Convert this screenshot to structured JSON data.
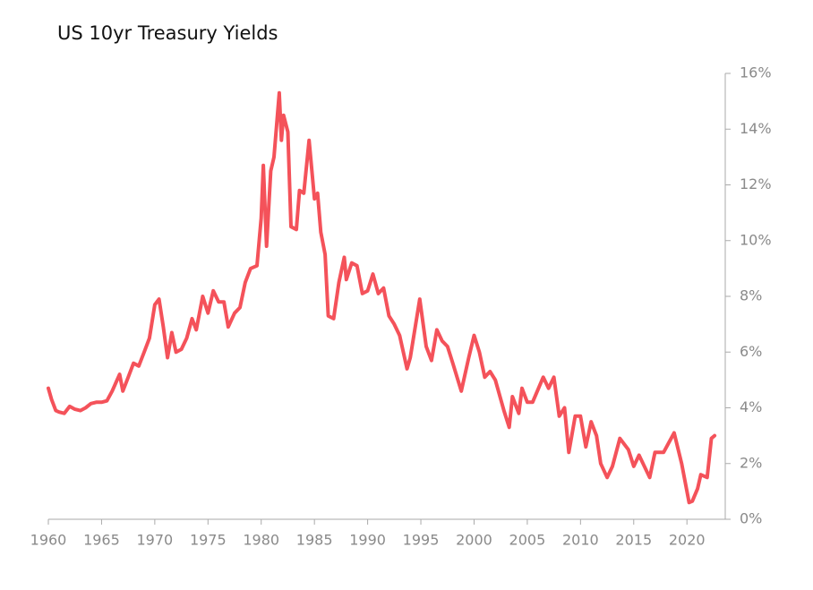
{
  "chart_data": {
    "type": "line",
    "title": "US 10yr Treasury Yields",
    "x": [
      1960.0,
      1960.3,
      1960.7,
      1961.0,
      1961.5,
      1962.0,
      1962.5,
      1963.0,
      1963.5,
      1964.0,
      1964.5,
      1965.0,
      1965.5,
      1966.0,
      1966.7,
      1967.0,
      1967.5,
      1968.0,
      1968.5,
      1969.0,
      1969.5,
      1970.0,
      1970.4,
      1970.8,
      1971.2,
      1971.6,
      1972.0,
      1972.5,
      1973.0,
      1973.5,
      1973.9,
      1974.5,
      1975.0,
      1975.5,
      1976.0,
      1976.5,
      1976.9,
      1977.5,
      1978.0,
      1978.5,
      1979.0,
      1979.6,
      1980.0,
      1980.2,
      1980.5,
      1980.9,
      1981.2,
      1981.7,
      1981.9,
      1982.1,
      1982.5,
      1982.8,
      1983.3,
      1983.6,
      1984.0,
      1984.5,
      1985.0,
      1985.3,
      1985.6,
      1986.0,
      1986.3,
      1986.8,
      1987.3,
      1987.8,
      1988.0,
      1988.5,
      1989.0,
      1989.5,
      1990.0,
      1990.5,
      1991.0,
      1991.5,
      1992.0,
      1992.5,
      1993.0,
      1993.7,
      1994.0,
      1994.9,
      1995.5,
      1996.0,
      1996.5,
      1997.0,
      1997.5,
      1998.0,
      1998.8,
      1999.5,
      2000.0,
      2000.5,
      2001.0,
      2001.5,
      2002.0,
      2002.8,
      2003.3,
      2003.6,
      2004.2,
      2004.5,
      2005.0,
      2005.5,
      2006.5,
      2007.0,
      2007.5,
      2008.0,
      2008.5,
      2008.9,
      2009.5,
      2010.0,
      2010.5,
      2011.0,
      2011.5,
      2011.9,
      2012.5,
      2013.0,
      2013.7,
      2014.5,
      2015.0,
      2015.5,
      2016.5,
      2017.0,
      2017.8,
      2018.8,
      2019.5,
      2020.2,
      2020.5,
      2021.0,
      2021.3,
      2021.9,
      2022.3,
      2022.6
    ],
    "values": [
      4.7,
      4.3,
      3.9,
      3.85,
      3.8,
      4.05,
      3.95,
      3.9,
      4.0,
      4.15,
      4.2,
      4.2,
      4.25,
      4.6,
      5.2,
      4.6,
      5.1,
      5.6,
      5.5,
      6.0,
      6.5,
      7.7,
      7.9,
      6.9,
      5.8,
      6.7,
      6.0,
      6.1,
      6.5,
      7.2,
      6.8,
      8.0,
      7.4,
      8.2,
      7.8,
      7.8,
      6.9,
      7.4,
      7.6,
      8.5,
      9.0,
      9.1,
      10.8,
      12.7,
      9.8,
      12.5,
      13.0,
      15.3,
      13.6,
      14.5,
      13.9,
      10.5,
      10.4,
      11.8,
      11.7,
      13.6,
      11.5,
      11.7,
      10.3,
      9.5,
      7.3,
      7.2,
      8.5,
      9.4,
      8.6,
      9.2,
      9.1,
      8.1,
      8.2,
      8.8,
      8.1,
      8.3,
      7.3,
      7.0,
      6.6,
      5.4,
      5.8,
      7.9,
      6.2,
      5.7,
      6.8,
      6.4,
      6.2,
      5.6,
      4.6,
      5.8,
      6.6,
      6.0,
      5.1,
      5.3,
      5.0,
      3.9,
      3.3,
      4.4,
      3.8,
      4.7,
      4.2,
      4.2,
      5.1,
      4.7,
      5.1,
      3.7,
      4.0,
      2.4,
      3.7,
      3.7,
      2.6,
      3.5,
      3.0,
      2.0,
      1.5,
      1.9,
      2.9,
      2.5,
      1.9,
      2.3,
      1.5,
      2.4,
      2.4,
      3.1,
      2.0,
      0.6,
      0.65,
      1.1,
      1.6,
      1.5,
      2.9,
      3.0
    ],
    "color": "#f4525a",
    "xlim": [
      1960,
      2023.6
    ],
    "xticks": [
      1960,
      1965,
      1970,
      1975,
      1980,
      1985,
      1990,
      1995,
      2000,
      2005,
      2010,
      2015,
      2020
    ],
    "ylim": [
      0,
      16
    ],
    "yticks": [
      {
        "value": 0,
        "label": "0%"
      },
      {
        "value": 2,
        "label": "2%"
      },
      {
        "value": 4,
        "label": "4%"
      },
      {
        "value": 6,
        "label": "6%"
      },
      {
        "value": 8,
        "label": "8%"
      },
      {
        "value": 10,
        "label": "10%"
      },
      {
        "value": 12,
        "label": "12%"
      },
      {
        "value": 14,
        "label": "14%"
      },
      {
        "value": 16,
        "label": "16%"
      }
    ]
  }
}
